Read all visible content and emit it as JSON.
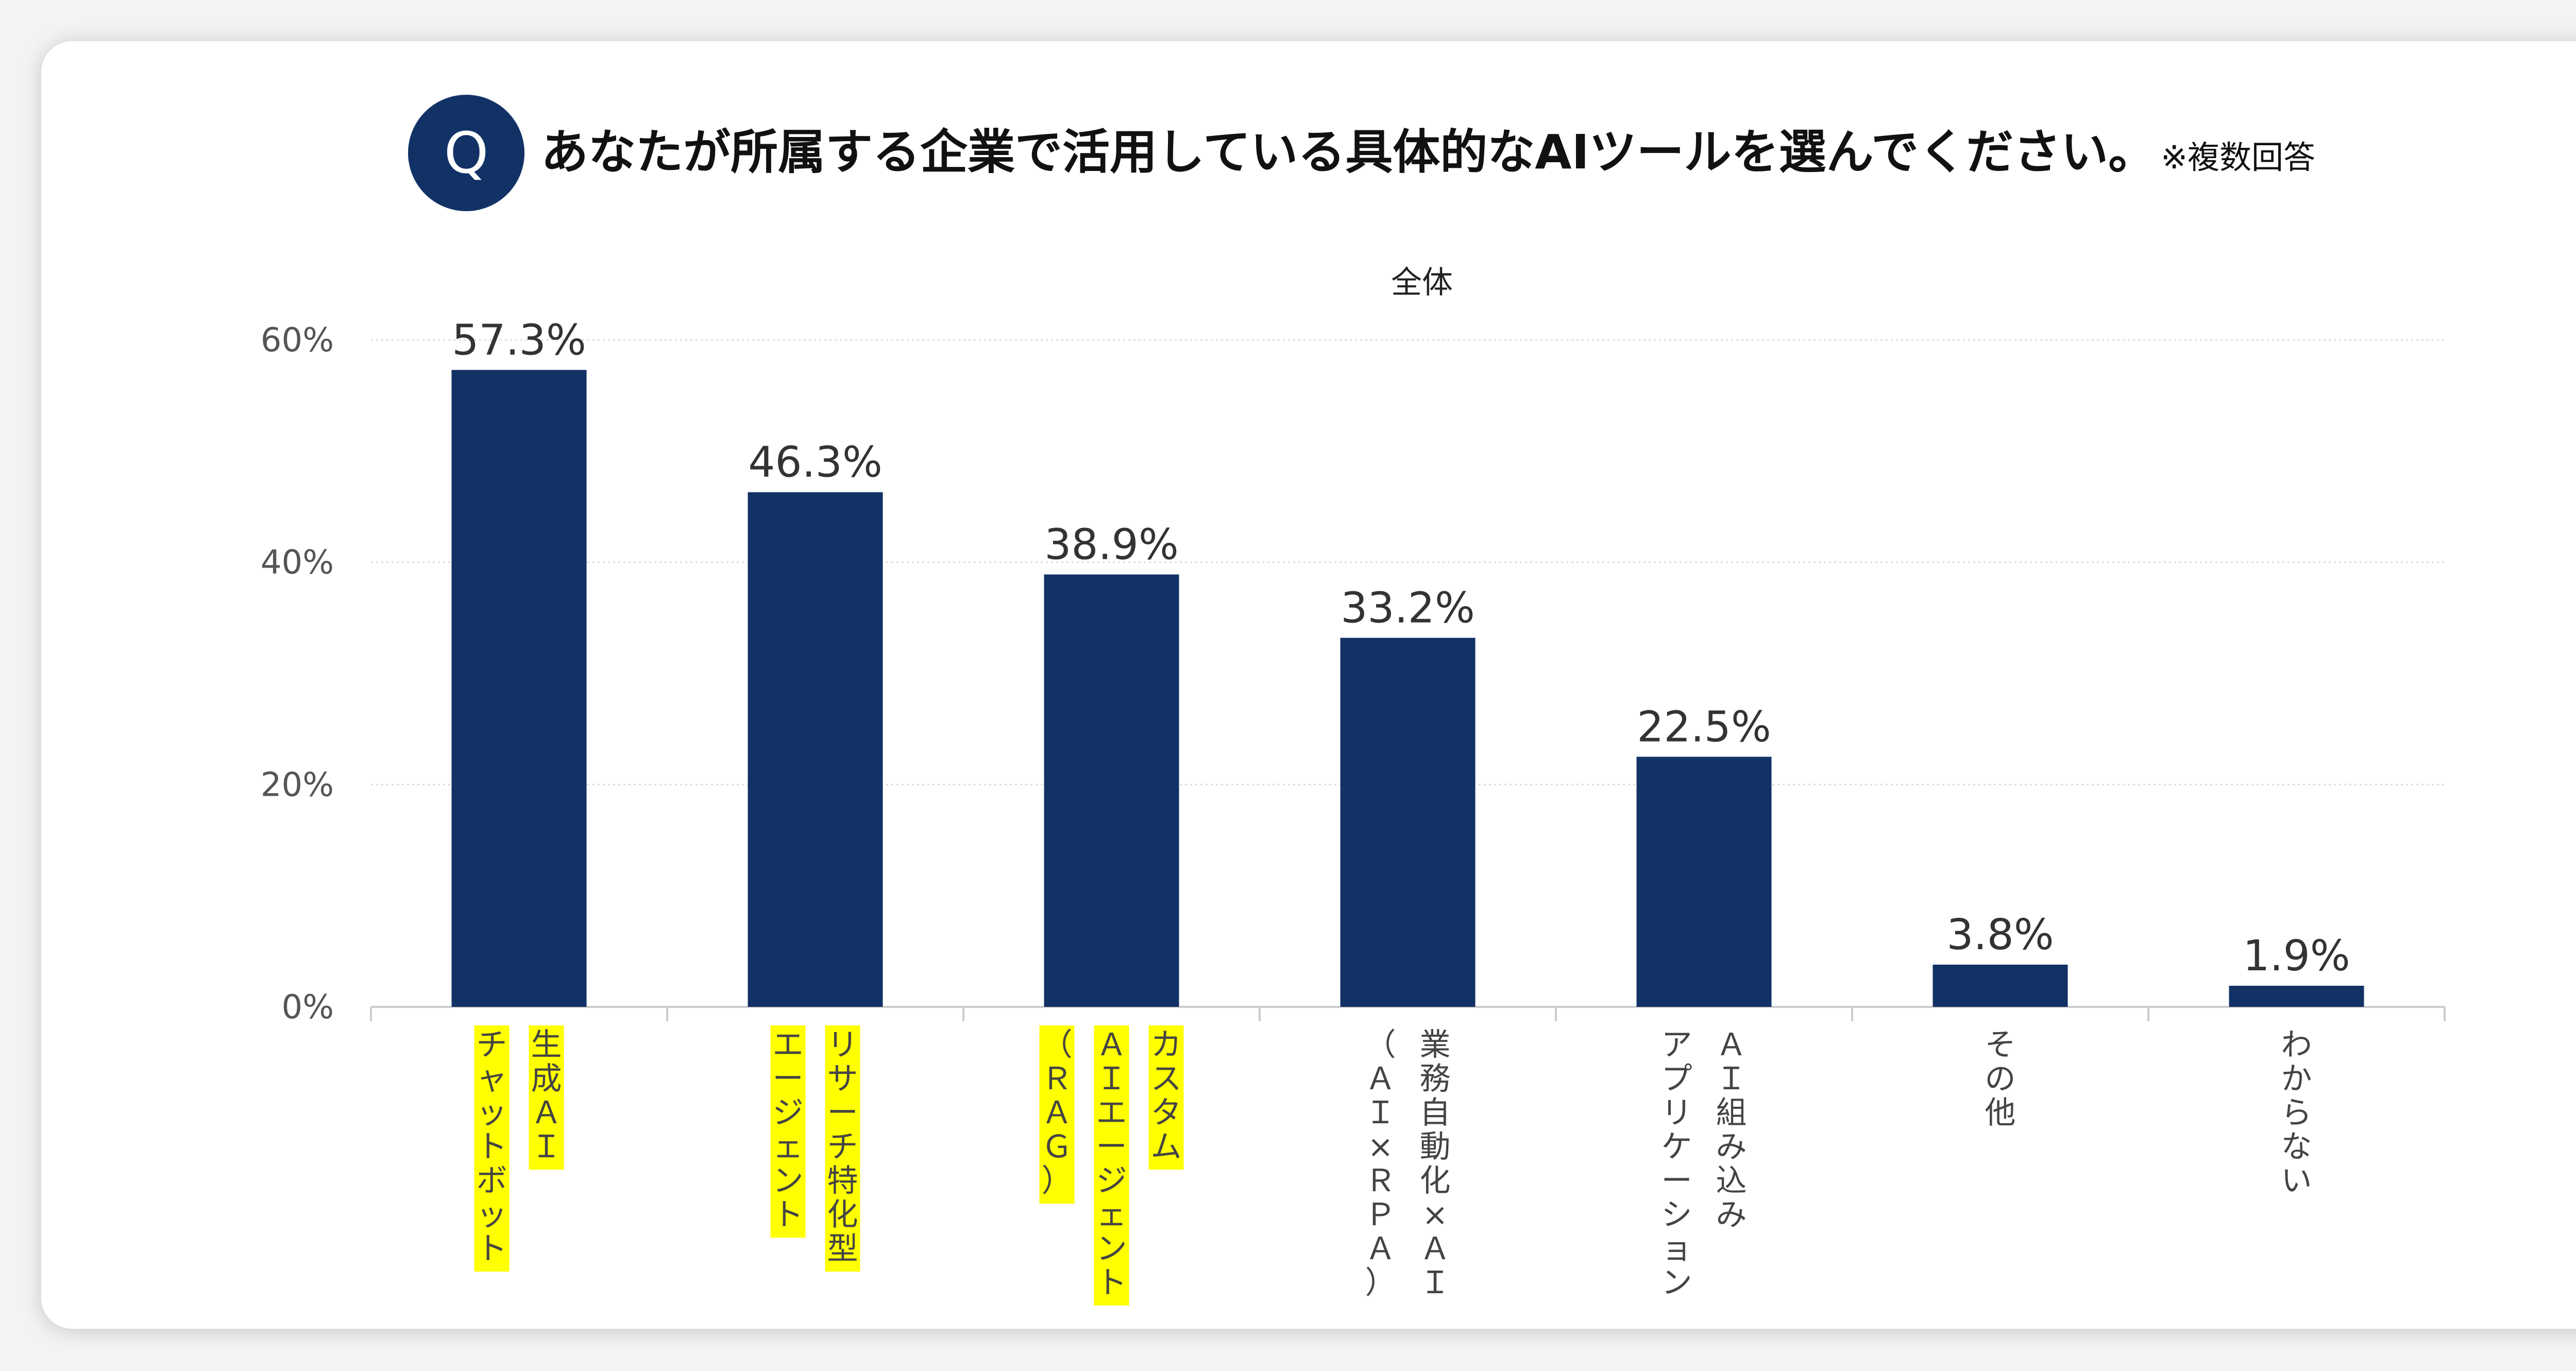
{
  "question": {
    "badge": "Q",
    "text": "あなたが所属する企業で活用している具体的なAIツールを選んでください。",
    "note": "※複数回答"
  },
  "chart_data": {
    "type": "bar",
    "title": "全体",
    "categories": [
      "生成AIチャットボット",
      "リサーチ特化型エージェント",
      "カスタムAIエージェント（RAG）",
      "業務自動化×AI（AI×RPA）",
      "AI組み込みアプリケーション",
      "その他",
      "わからない"
    ],
    "category_label_columns": [
      [
        "生成ＡＩ",
        "チャットボット"
      ],
      [
        "リサーチ特化型",
        "エージェント"
      ],
      [
        "カスタム",
        "ＡＩエージェント",
        "（ＲＡＧ）"
      ],
      [
        "業務自動化×ＡＩ",
        "（ＡＩ×ＲＰＡ）"
      ],
      [
        "ＡＩ組み込み",
        "アプリケーション"
      ],
      [
        "その他"
      ],
      [
        "わからない"
      ]
    ],
    "highlighted": [
      true,
      true,
      true,
      false,
      false,
      false,
      false
    ],
    "values": [
      57.3,
      46.3,
      38.9,
      33.2,
      22.5,
      3.8,
      1.9
    ],
    "data_labels": [
      "57.3%",
      "46.3%",
      "38.9%",
      "33.2%",
      "22.5%",
      "3.8%",
      "1.9%"
    ],
    "y_ticks": [
      0,
      20,
      40,
      60
    ],
    "y_tick_labels": [
      "0%",
      "20%",
      "40%",
      "60%"
    ],
    "ylim": [
      0,
      60
    ],
    "xlabel": "",
    "ylabel": "",
    "grid": true,
    "bar_color": "#123266",
    "highlight_color": "#ffff00"
  }
}
